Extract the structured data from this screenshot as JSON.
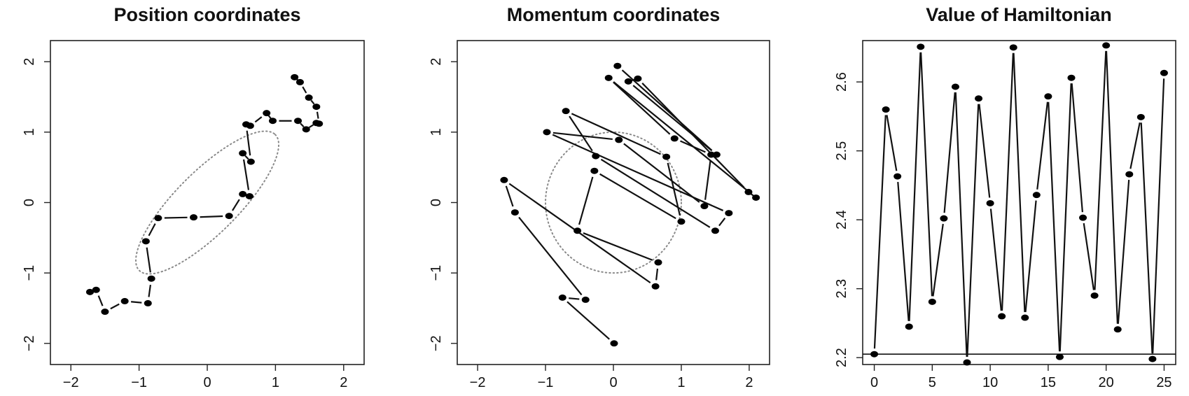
{
  "chart_data": [
    {
      "type": "scatter",
      "title": "Position coordinates",
      "xlim": [
        -2.3,
        2.3
      ],
      "ylim": [
        -2.3,
        2.3
      ],
      "xticks": [
        -2,
        -1,
        0,
        1,
        2
      ],
      "yticks": [
        -2,
        -1,
        0,
        1,
        2
      ],
      "xtick_labels": [
        "−2",
        "−1",
        "0",
        "1",
        "2"
      ],
      "ytick_labels": [
        "−2",
        "−1",
        "0",
        "1",
        "2"
      ],
      "grid": false,
      "connection": "alternating",
      "points": [
        [
          -1.72,
          -1.27
        ],
        [
          -1.63,
          -1.24
        ],
        [
          -1.5,
          -1.55
        ],
        [
          -1.21,
          -1.4
        ],
        [
          -0.87,
          -1.43
        ],
        [
          -0.82,
          -1.08
        ],
        [
          -0.9,
          -0.55
        ],
        [
          -0.72,
          -0.22
        ],
        [
          -0.2,
          -0.21
        ],
        [
          0.32,
          -0.19
        ],
        [
          0.52,
          0.12
        ],
        [
          0.62,
          0.09
        ],
        [
          0.52,
          0.7
        ],
        [
          0.64,
          0.58
        ],
        [
          0.57,
          1.11
        ],
        [
          0.63,
          1.09
        ],
        [
          0.87,
          1.27
        ],
        [
          0.96,
          1.16
        ],
        [
          1.33,
          1.16
        ],
        [
          1.45,
          1.04
        ],
        [
          1.6,
          1.13
        ],
        [
          1.64,
          1.12
        ],
        [
          1.6,
          1.36
        ],
        [
          1.49,
          1.49
        ],
        [
          1.36,
          1.71
        ],
        [
          1.28,
          1.78
        ]
      ],
      "ellipse": {
        "cx": 0,
        "cy": 0,
        "rx": 1.41,
        "ry": 0.44,
        "angle_deg": 45
      }
    },
    {
      "type": "scatter",
      "title": "Momentum coordinates",
      "xlim": [
        -2.3,
        2.3
      ],
      "ylim": [
        -2.3,
        2.3
      ],
      "xticks": [
        -2,
        -1,
        0,
        1,
        2
      ],
      "yticks": [
        -2,
        -1,
        0,
        1,
        2
      ],
      "xtick_labels": [
        "−2",
        "−1",
        "0",
        "1",
        "2"
      ],
      "ytick_labels": [
        "−2",
        "−1",
        "0",
        "1",
        "2"
      ],
      "grid": false,
      "connection": "alternating",
      "points": [
        [
          0.01,
          -2.0
        ],
        [
          -0.75,
          -1.35
        ],
        [
          -0.41,
          -1.38
        ],
        [
          -1.45,
          -0.14
        ],
        [
          -1.61,
          0.32
        ],
        [
          0.62,
          -1.19
        ],
        [
          0.66,
          -0.85
        ],
        [
          -0.53,
          -0.4
        ],
        [
          -0.28,
          0.45
        ],
        [
          1.0,
          -0.27
        ],
        [
          0.78,
          0.65
        ],
        [
          -0.7,
          1.3
        ],
        [
          -0.26,
          0.66
        ],
        [
          1.5,
          -0.4
        ],
        [
          1.7,
          -0.15
        ],
        [
          -0.98,
          1.0
        ],
        [
          0.08,
          0.89
        ],
        [
          1.34,
          -0.05
        ],
        [
          1.44,
          0.68
        ],
        [
          0.9,
          0.91
        ],
        [
          -0.07,
          1.77
        ],
        [
          2.1,
          0.07
        ],
        [
          1.99,
          0.15
        ],
        [
          0.36,
          1.76
        ],
        [
          0.22,
          1.72
        ],
        [
          1.52,
          0.68
        ],
        [
          0.06,
          1.94
        ]
      ],
      "ellipse": {
        "cx": 0,
        "cy": 0,
        "rx": 1.0,
        "ry": 1.0,
        "angle_deg": 0
      }
    },
    {
      "type": "line",
      "title": "Value of Hamiltonian",
      "xlim": [
        -1,
        26
      ],
      "ylim": [
        2.19,
        2.66
      ],
      "xticks": [
        0,
        5,
        10,
        15,
        20,
        25
      ],
      "yticks": [
        2.2,
        2.3,
        2.4,
        2.5,
        2.6
      ],
      "xtick_labels": [
        "0",
        "5",
        "10",
        "15",
        "20",
        "25"
      ],
      "ytick_labels": [
        "2.2",
        "2.3",
        "2.4",
        "2.5",
        "2.6"
      ],
      "grid": false,
      "x": [
        0,
        1,
        2,
        3,
        4,
        5,
        6,
        7,
        8,
        9,
        10,
        11,
        12,
        13,
        14,
        15,
        16,
        17,
        18,
        19,
        20,
        21,
        22,
        23,
        24,
        25
      ],
      "values": [
        2.205,
        2.56,
        2.463,
        2.245,
        2.651,
        2.281,
        2.402,
        2.593,
        2.193,
        2.576,
        2.424,
        2.26,
        2.65,
        2.258,
        2.436,
        2.579,
        2.201,
        2.606,
        2.403,
        2.29,
        2.653,
        2.241,
        2.466,
        2.549,
        2.198,
        2.613
      ],
      "hline": 2.205
    }
  ]
}
